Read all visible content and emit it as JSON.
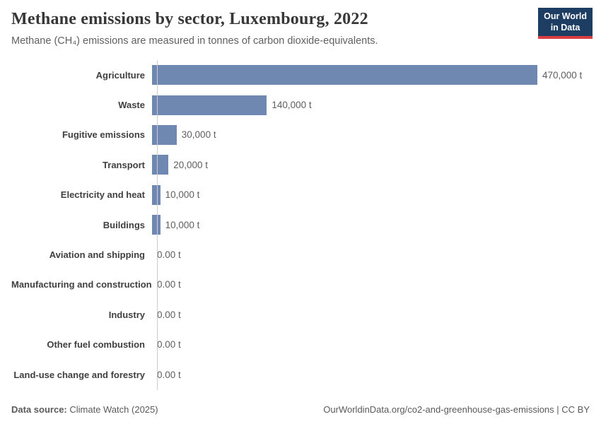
{
  "header": {
    "title": "Methane emissions by sector, Luxembourg, 2022",
    "subtitle": "Methane (CH₄) emissions are measured in tonnes of carbon dioxide-equivalents.",
    "logo_line1": "Our World",
    "logo_line2": "in Data",
    "logo_bg_color": "#1d3d63",
    "logo_accent_color": "#dc3d43"
  },
  "chart_data": {
    "type": "bar",
    "orientation": "horizontal",
    "title": "Methane emissions by sector, Luxembourg, 2022",
    "xlabel": "",
    "ylabel": "",
    "unit": "t",
    "xlim": [
      0,
      470000
    ],
    "grid": false,
    "categories": [
      "Agriculture",
      "Waste",
      "Fugitive emissions",
      "Transport",
      "Electricity and heat",
      "Buildings",
      "Aviation and shipping",
      "Manufacturing and construction",
      "Industry",
      "Other fuel combustion",
      "Land-use change and forestry"
    ],
    "values": [
      470000,
      140000,
      30000,
      20000,
      10000,
      10000,
      0,
      0,
      0,
      0,
      0
    ],
    "value_labels": [
      "470,000 t",
      "140,000 t",
      "30,000 t",
      "20,000 t",
      "10,000 t",
      "10,000 t",
      "0.00 t",
      "0.00 t",
      "0.00 t",
      "0.00 t",
      "0.00 t"
    ],
    "bar_color": "#6e88b2",
    "axis_color": "#cccccc"
  },
  "footer": {
    "source_label": "Data source:",
    "source_value": " Climate Watch (2025)",
    "credit": "OurWorldinData.org/co2-and-greenhouse-gas-emissions | CC BY"
  }
}
